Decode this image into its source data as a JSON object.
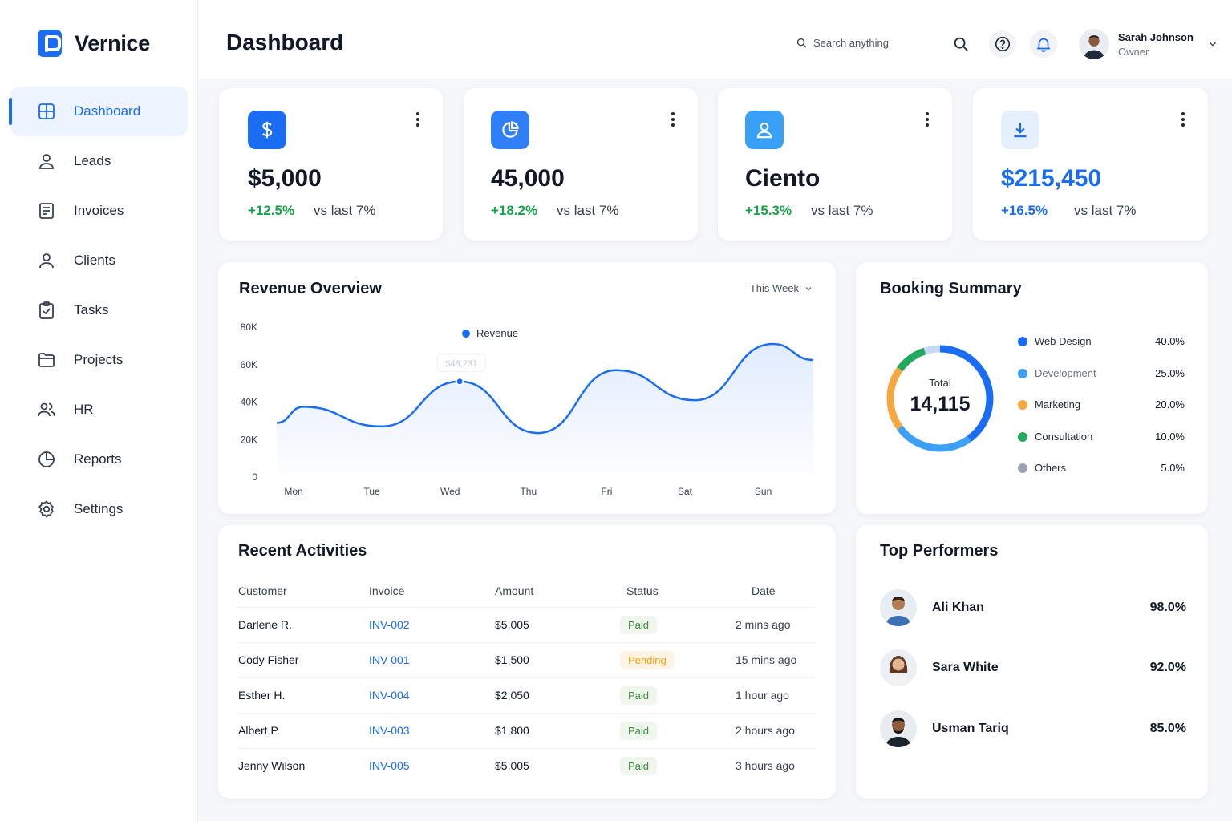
{
  "brand": {
    "name": "Vernice"
  },
  "sidebar": {
    "items": [
      {
        "label": "Dashboard",
        "icon": "grid-icon",
        "active": true
      },
      {
        "label": "Leads",
        "icon": "user-icon"
      },
      {
        "label": "Invoices",
        "icon": "document-icon"
      },
      {
        "label": "Clients",
        "icon": "user-icon"
      },
      {
        "label": "Tasks",
        "icon": "clipboard-check-icon"
      },
      {
        "label": "Projects",
        "icon": "folder-icon"
      },
      {
        "label": "HR",
        "icon": "users-icon"
      },
      {
        "label": "Reports",
        "icon": "pie-chart-icon"
      },
      {
        "label": "Settings",
        "icon": "gear-icon"
      }
    ]
  },
  "header": {
    "title": "Dashboard",
    "search_placeholder": "Search anything",
    "user": {
      "name": "Sarah Johnson",
      "role": "Owner"
    }
  },
  "stats": [
    {
      "icon": "dollar-icon",
      "value": "$5,000",
      "change": "+12.5%",
      "vs": "vs last 7%",
      "icon_bg": "#1a6cf2"
    },
    {
      "icon": "pie-chart-icon",
      "value": "45,000",
      "change": "+18.2%",
      "vs": "vs last 7%",
      "icon_bg": "#2f80f7"
    },
    {
      "icon": "user-icon",
      "value": "Ciento",
      "change": "+15.3%",
      "vs": "vs last 7%",
      "icon_bg": "#38a0f5"
    },
    {
      "icon": "download-icon",
      "value": "$215,450",
      "change": "+16.5%",
      "vs": "vs last 7%",
      "icon_bg": "#e6f0fd"
    }
  ],
  "revenue": {
    "title": "Revenue Overview",
    "range": "This Week",
    "tooltip": "$48,231"
  },
  "chart_data": {
    "type": "line",
    "series": [
      {
        "name": "Revenue",
        "color": "#1a6cf2",
        "values": [
          37500,
          27000,
          51000,
          23500,
          57000,
          41000,
          71000
        ]
      }
    ],
    "categories": [
      "Mon",
      "Tue",
      "Wed",
      "Thu",
      "Fri",
      "Sat",
      "Sun"
    ],
    "yticks": [
      "80K",
      "60K",
      "40K",
      "20K",
      "0"
    ],
    "ylim": [
      0,
      80000
    ],
    "grid": false,
    "legend": "top"
  },
  "booking": {
    "title": "Booking Summary",
    "total_label": "Total",
    "total_value": "14,115",
    "segments": [
      {
        "label": "Web Design",
        "value": "40.0%",
        "pct": 40,
        "color": "#1a6cf2"
      },
      {
        "label": "Development",
        "value": "25.0%",
        "pct": 25,
        "color": "#3ea0f5"
      },
      {
        "label": "Marketing",
        "value": "20.0%",
        "pct": 20,
        "color": "#f5a742"
      },
      {
        "label": "Consultation",
        "value": "10.0%",
        "pct": 10,
        "color": "#22a95b"
      },
      {
        "label": "Others",
        "value": "5.0%",
        "pct": 5,
        "color": "#c9d8f5"
      }
    ]
  },
  "activities": {
    "title": "Recent Activities",
    "columns": [
      "Customer",
      "Invoice",
      "Amount",
      "Status",
      "Date"
    ],
    "rows": [
      {
        "customer": "Darlene R.",
        "invoice": "INV-002",
        "amount": "$5,005",
        "status": "Paid",
        "date": "2 mins ago"
      },
      {
        "customer": "Cody Fisher",
        "invoice": "INV-001",
        "amount": "$1,500",
        "status": "Pending",
        "date": "15 mins ago"
      },
      {
        "customer": "Esther H.",
        "invoice": "INV-004",
        "amount": "$2,050",
        "status": "Paid",
        "date": "1 hour ago"
      },
      {
        "customer": "Albert P.",
        "invoice": "INV-003",
        "amount": "$1,800",
        "status": "Paid",
        "date": "2 hours ago"
      },
      {
        "customer": "Jenny Wilson",
        "invoice": "INV-005",
        "amount": "$5,005",
        "status": "Paid",
        "date": "3 hours ago"
      }
    ]
  },
  "performers": {
    "title": "Top Performers",
    "items": [
      {
        "name": "Ali Khan",
        "score": "98.0%"
      },
      {
        "name": "Sara White",
        "score": "92.0%"
      },
      {
        "name": "Usman Tariq",
        "score": "85.0%"
      }
    ]
  }
}
